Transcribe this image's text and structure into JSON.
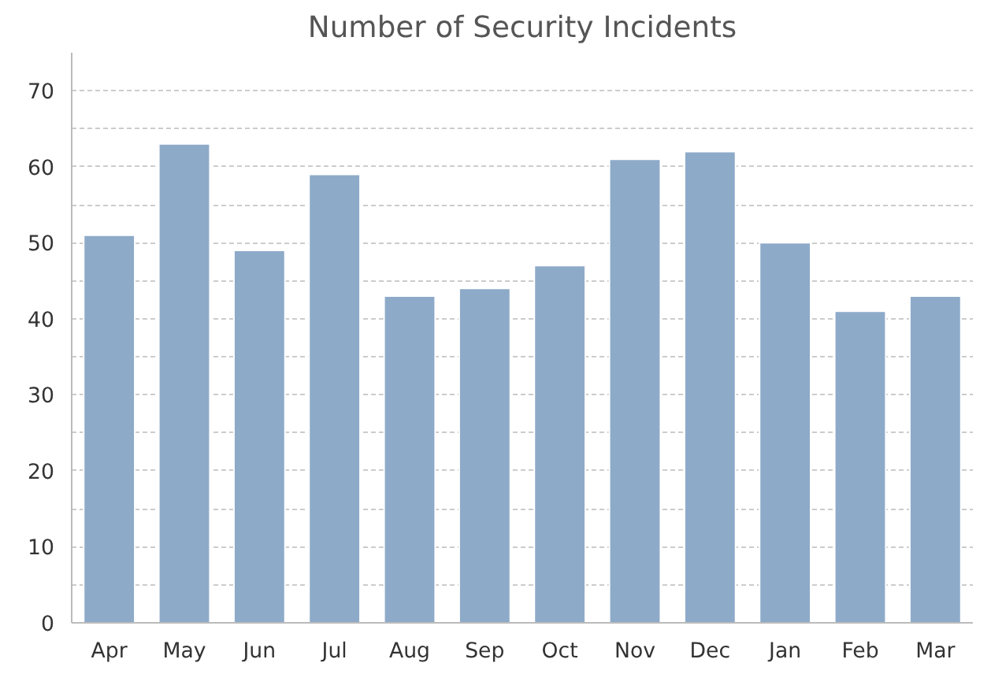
{
  "chart_data": {
    "type": "bar",
    "title": "Number of Security Incidents",
    "categories": [
      "Apr",
      "May",
      "Jun",
      "Jul",
      "Aug",
      "Sep",
      "Oct",
      "Nov",
      "Dec",
      "Jan",
      "Feb",
      "Mar"
    ],
    "values": [
      51,
      63,
      49,
      59,
      43,
      44,
      47,
      61,
      62,
      50,
      41,
      43
    ],
    "color": "#8eaac9",
    "ylim": [
      0,
      75
    ],
    "yticks": [
      0,
      {
        "value": 5,
        "label": null
      },
      10,
      {
        "value": 15,
        "label": null
      },
      20,
      {
        "value": 25,
        "label": null
      },
      30,
      {
        "value": 35,
        "label": null
      },
      40,
      {
        "value": 45,
        "label": null
      },
      50,
      {
        "value": 55,
        "label": null
      },
      60,
      {
        "value": 65,
        "label": null
      },
      70
    ],
    "grid": "y"
  }
}
